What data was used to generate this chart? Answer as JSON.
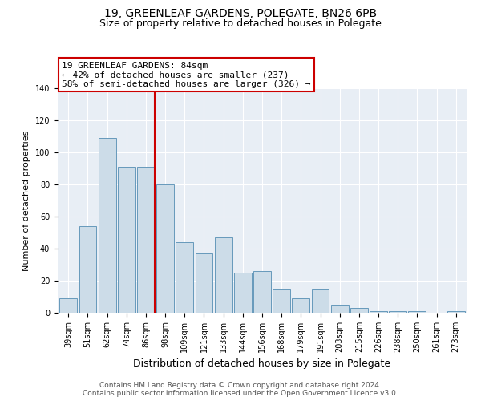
{
  "title": "19, GREENLEAF GARDENS, POLEGATE, BN26 6PB",
  "subtitle": "Size of property relative to detached houses in Polegate",
  "xlabel": "Distribution of detached houses by size in Polegate",
  "ylabel": "Number of detached properties",
  "bar_labels": [
    "39sqm",
    "51sqm",
    "62sqm",
    "74sqm",
    "86sqm",
    "98sqm",
    "109sqm",
    "121sqm",
    "133sqm",
    "144sqm",
    "156sqm",
    "168sqm",
    "179sqm",
    "191sqm",
    "203sqm",
    "215sqm",
    "226sqm",
    "238sqm",
    "250sqm",
    "261sqm",
    "273sqm"
  ],
  "bar_heights": [
    9,
    54,
    109,
    91,
    91,
    80,
    44,
    37,
    47,
    25,
    26,
    15,
    9,
    15,
    5,
    3,
    1,
    1,
    1,
    0,
    1
  ],
  "bar_color": "#ccdce8",
  "bar_edge_color": "#6699bb",
  "vline_x_index": 4,
  "vline_color": "#cc0000",
  "ylim": [
    0,
    140
  ],
  "yticks": [
    0,
    20,
    40,
    60,
    80,
    100,
    120,
    140
  ],
  "annotation_line1": "19 GREENLEAF GARDENS: 84sqm",
  "annotation_line2": "← 42% of detached houses are smaller (237)",
  "annotation_line3": "58% of semi-detached houses are larger (326) →",
  "annotation_box_color": "#ffffff",
  "annotation_box_edge_color": "#cc0000",
  "bg_color": "#e8eef5",
  "grid_color": "#ffffff",
  "footer_line1": "Contains HM Land Registry data © Crown copyright and database right 2024.",
  "footer_line2": "Contains public sector information licensed under the Open Government Licence v3.0.",
  "title_fontsize": 10,
  "subtitle_fontsize": 9,
  "xlabel_fontsize": 9,
  "ylabel_fontsize": 8,
  "tick_fontsize": 7,
  "annotation_fontsize": 8,
  "footer_fontsize": 6.5
}
